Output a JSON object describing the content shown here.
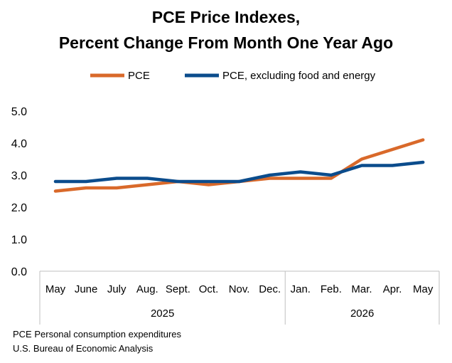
{
  "chart_data": {
    "type": "line",
    "title_line1": "PCE Price Indexes,",
    "title_line2": "Percent Change From Month One Year Ago",
    "categories": [
      "May",
      "June",
      "July",
      "Aug.",
      "Sept.",
      "Oct.",
      "Nov.",
      "Dec.",
      "Jan.",
      "Feb.",
      "Mar.",
      "Apr.",
      "May"
    ],
    "years": [
      {
        "label": "2025",
        "start": 0,
        "end": 7
      },
      {
        "label": "2026",
        "start": 8,
        "end": 12
      }
    ],
    "yticks": [
      "0.0",
      "1.0",
      "2.0",
      "3.0",
      "4.0",
      "5.0"
    ],
    "ylim": [
      0,
      5
    ],
    "grid": false,
    "legend_position": "top",
    "series": [
      {
        "name": "PCE",
        "color": "#D9692A",
        "values": [
          2.5,
          2.6,
          2.6,
          2.7,
          2.8,
          2.7,
          2.8,
          2.9,
          2.9,
          2.9,
          3.5,
          3.8,
          4.1
        ]
      },
      {
        "name": "PCE, excluding food and energy",
        "color": "#0B4C8C",
        "values": [
          2.8,
          2.8,
          2.9,
          2.9,
          2.8,
          2.8,
          2.8,
          3.0,
          3.1,
          3.0,
          3.3,
          3.3,
          3.4
        ]
      }
    ]
  },
  "footnotes": {
    "line1": "PCE Personal consumption expenditures",
    "line2": "U.S. Bureau of Economic Analysis"
  }
}
